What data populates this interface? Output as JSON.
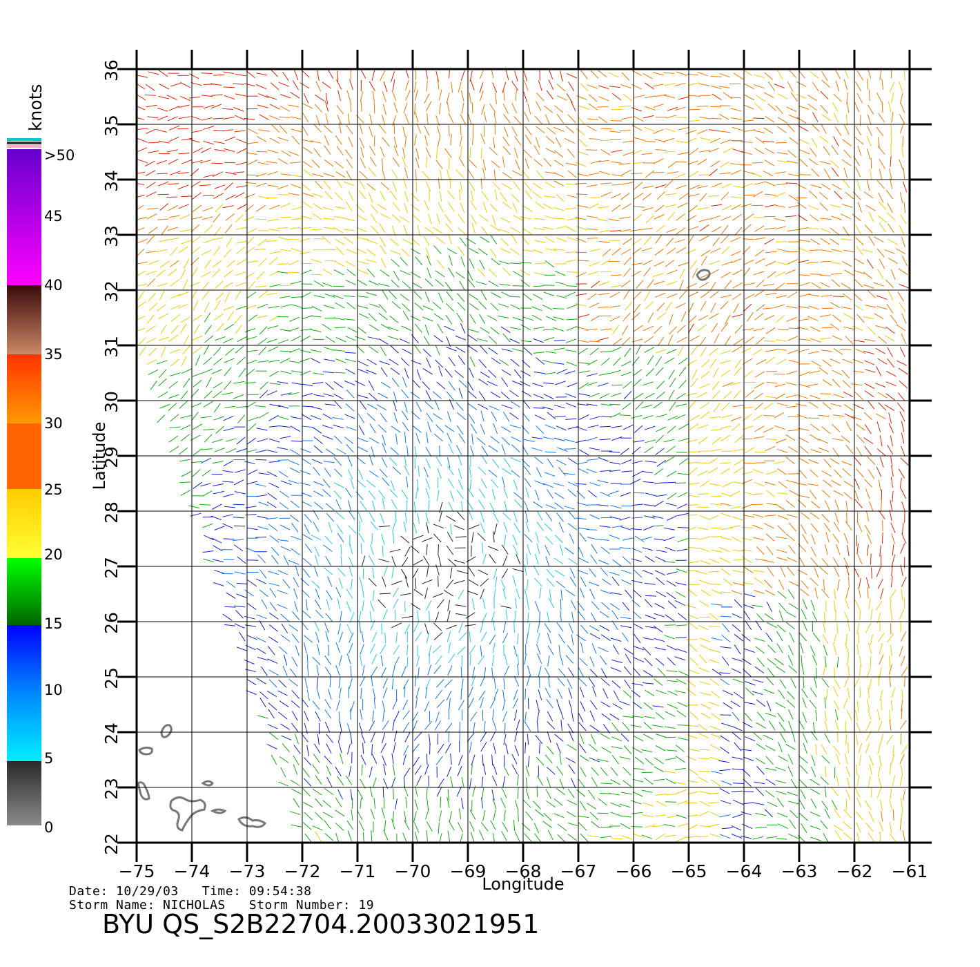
{
  "map": {
    "lon_range": [
      -75,
      -61
    ],
    "lat_range": [
      22,
      36
    ],
    "lon_ticks": [
      -75,
      -74,
      -73,
      -72,
      -71,
      -70,
      -69,
      -68,
      -67,
      -66,
      -65,
      -64,
      -63,
      -62,
      -61
    ],
    "lat_ticks": [
      22,
      23,
      24,
      25,
      26,
      27,
      28,
      29,
      30,
      31,
      32,
      33,
      34,
      35,
      36
    ],
    "lon_tick_labels": [
      "−75",
      "−74",
      "−73",
      "−72",
      "−71",
      "−70",
      "−69",
      "−68",
      "−67",
      "−66",
      "−65",
      "−64",
      "−63",
      "−62",
      "−61"
    ],
    "lat_tick_labels": [
      "22",
      "23",
      "24",
      "25",
      "26",
      "27",
      "28",
      "29",
      "30",
      "31",
      "32",
      "33",
      "34",
      "35",
      "36"
    ],
    "xlabel": "Longitude",
    "ylabel": "Latitude",
    "grid": true,
    "layer": "wind vectors (scatterometer swath)",
    "land_color": "#777777"
  },
  "legend": {
    "unit": "knots",
    "levels": [
      ">50",
      "45",
      "40",
      "35",
      "30",
      "25",
      "20",
      "15",
      "10",
      "5",
      "0"
    ]
  },
  "info": {
    "date_time": "Date: 10/29/03   Time: 09:54:38",
    "storm": "Storm Name: NICHOLAS   Storm Number: 19",
    "title": "BYU QS_S2B22704.20033021951"
  }
}
